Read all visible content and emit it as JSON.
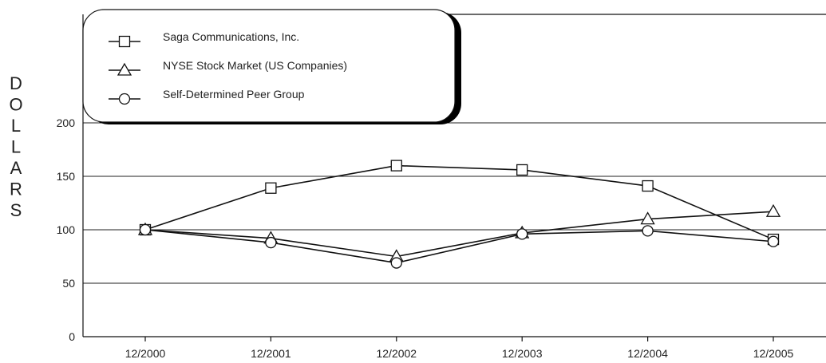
{
  "chart_data": {
    "type": "line",
    "ylabel": "DOLLARS",
    "categories": [
      "12/2000",
      "12/2001",
      "12/2002",
      "12/2003",
      "12/2004",
      "12/2005"
    ],
    "ylim": [
      0,
      200
    ],
    "yticks": [
      0,
      50,
      100,
      150,
      200
    ],
    "grid": true,
    "legend_position": "top-left",
    "series": [
      {
        "name": "Saga Communications, Inc.",
        "marker": "square",
        "values": [
          100,
          139,
          160,
          156,
          141,
          91
        ]
      },
      {
        "name": "NYSE Stock Market (US Companies)",
        "marker": "triangle",
        "values": [
          100,
          92,
          75,
          97,
          110,
          117
        ]
      },
      {
        "name": "Self-Determined Peer Group",
        "marker": "circle",
        "values": [
          100,
          88,
          69,
          96,
          99,
          89
        ]
      }
    ]
  }
}
